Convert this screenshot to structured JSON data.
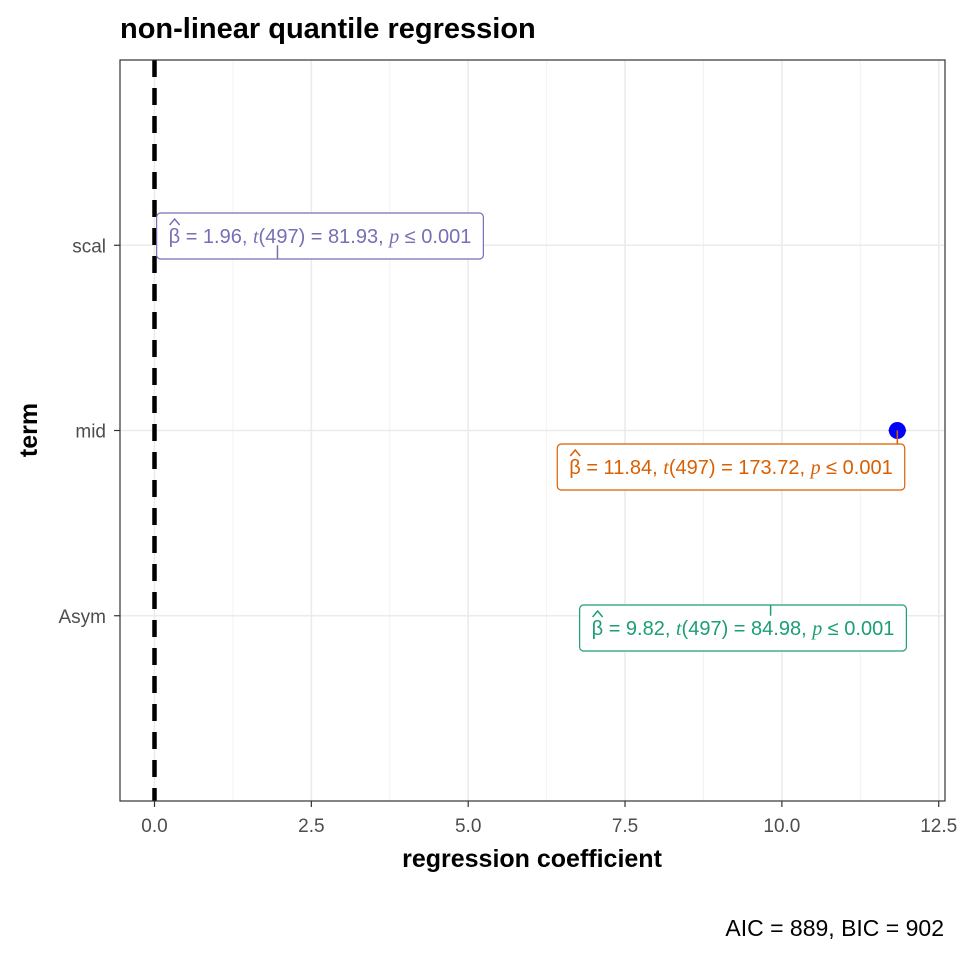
{
  "chart_data": {
    "type": "scatter",
    "title": "non-linear quantile regression",
    "xlabel": "regression coefficient",
    "ylabel": "term",
    "caption": "AIC = 889, BIC = 902",
    "xlim": [
      -0.55,
      12.6
    ],
    "x_ticks": [
      "0.0",
      "2.5",
      "5.0",
      "7.5",
      "10.0",
      "12.5"
    ],
    "x_tick_values": [
      0,
      2.5,
      5,
      7.5,
      10,
      12.5
    ],
    "reference_line": 0,
    "grid": true,
    "point_color": "#0000ff",
    "terms": [
      {
        "term": "Asym",
        "estimate": 9.82,
        "ci": [
          9.6,
          10.04
        ],
        "label": {
          "beta": "9.82",
          "df": "497",
          "t": "84.98",
          "p": "0.001"
        },
        "color": "#1b9e77"
      },
      {
        "term": "mid",
        "estimate": 11.84,
        "ci": [
          11.7,
          11.98
        ],
        "label": {
          "beta": "11.84",
          "df": "497",
          "t": "173.72",
          "p": "0.001"
        },
        "color": "#d95f02"
      },
      {
        "term": "scal",
        "estimate": 1.96,
        "ci": [
          1.91,
          2.01
        ],
        "label": {
          "beta": "1.96",
          "df": "497",
          "t": "81.93",
          "p": "0.001"
        },
        "color": "#7570b3"
      }
    ]
  }
}
